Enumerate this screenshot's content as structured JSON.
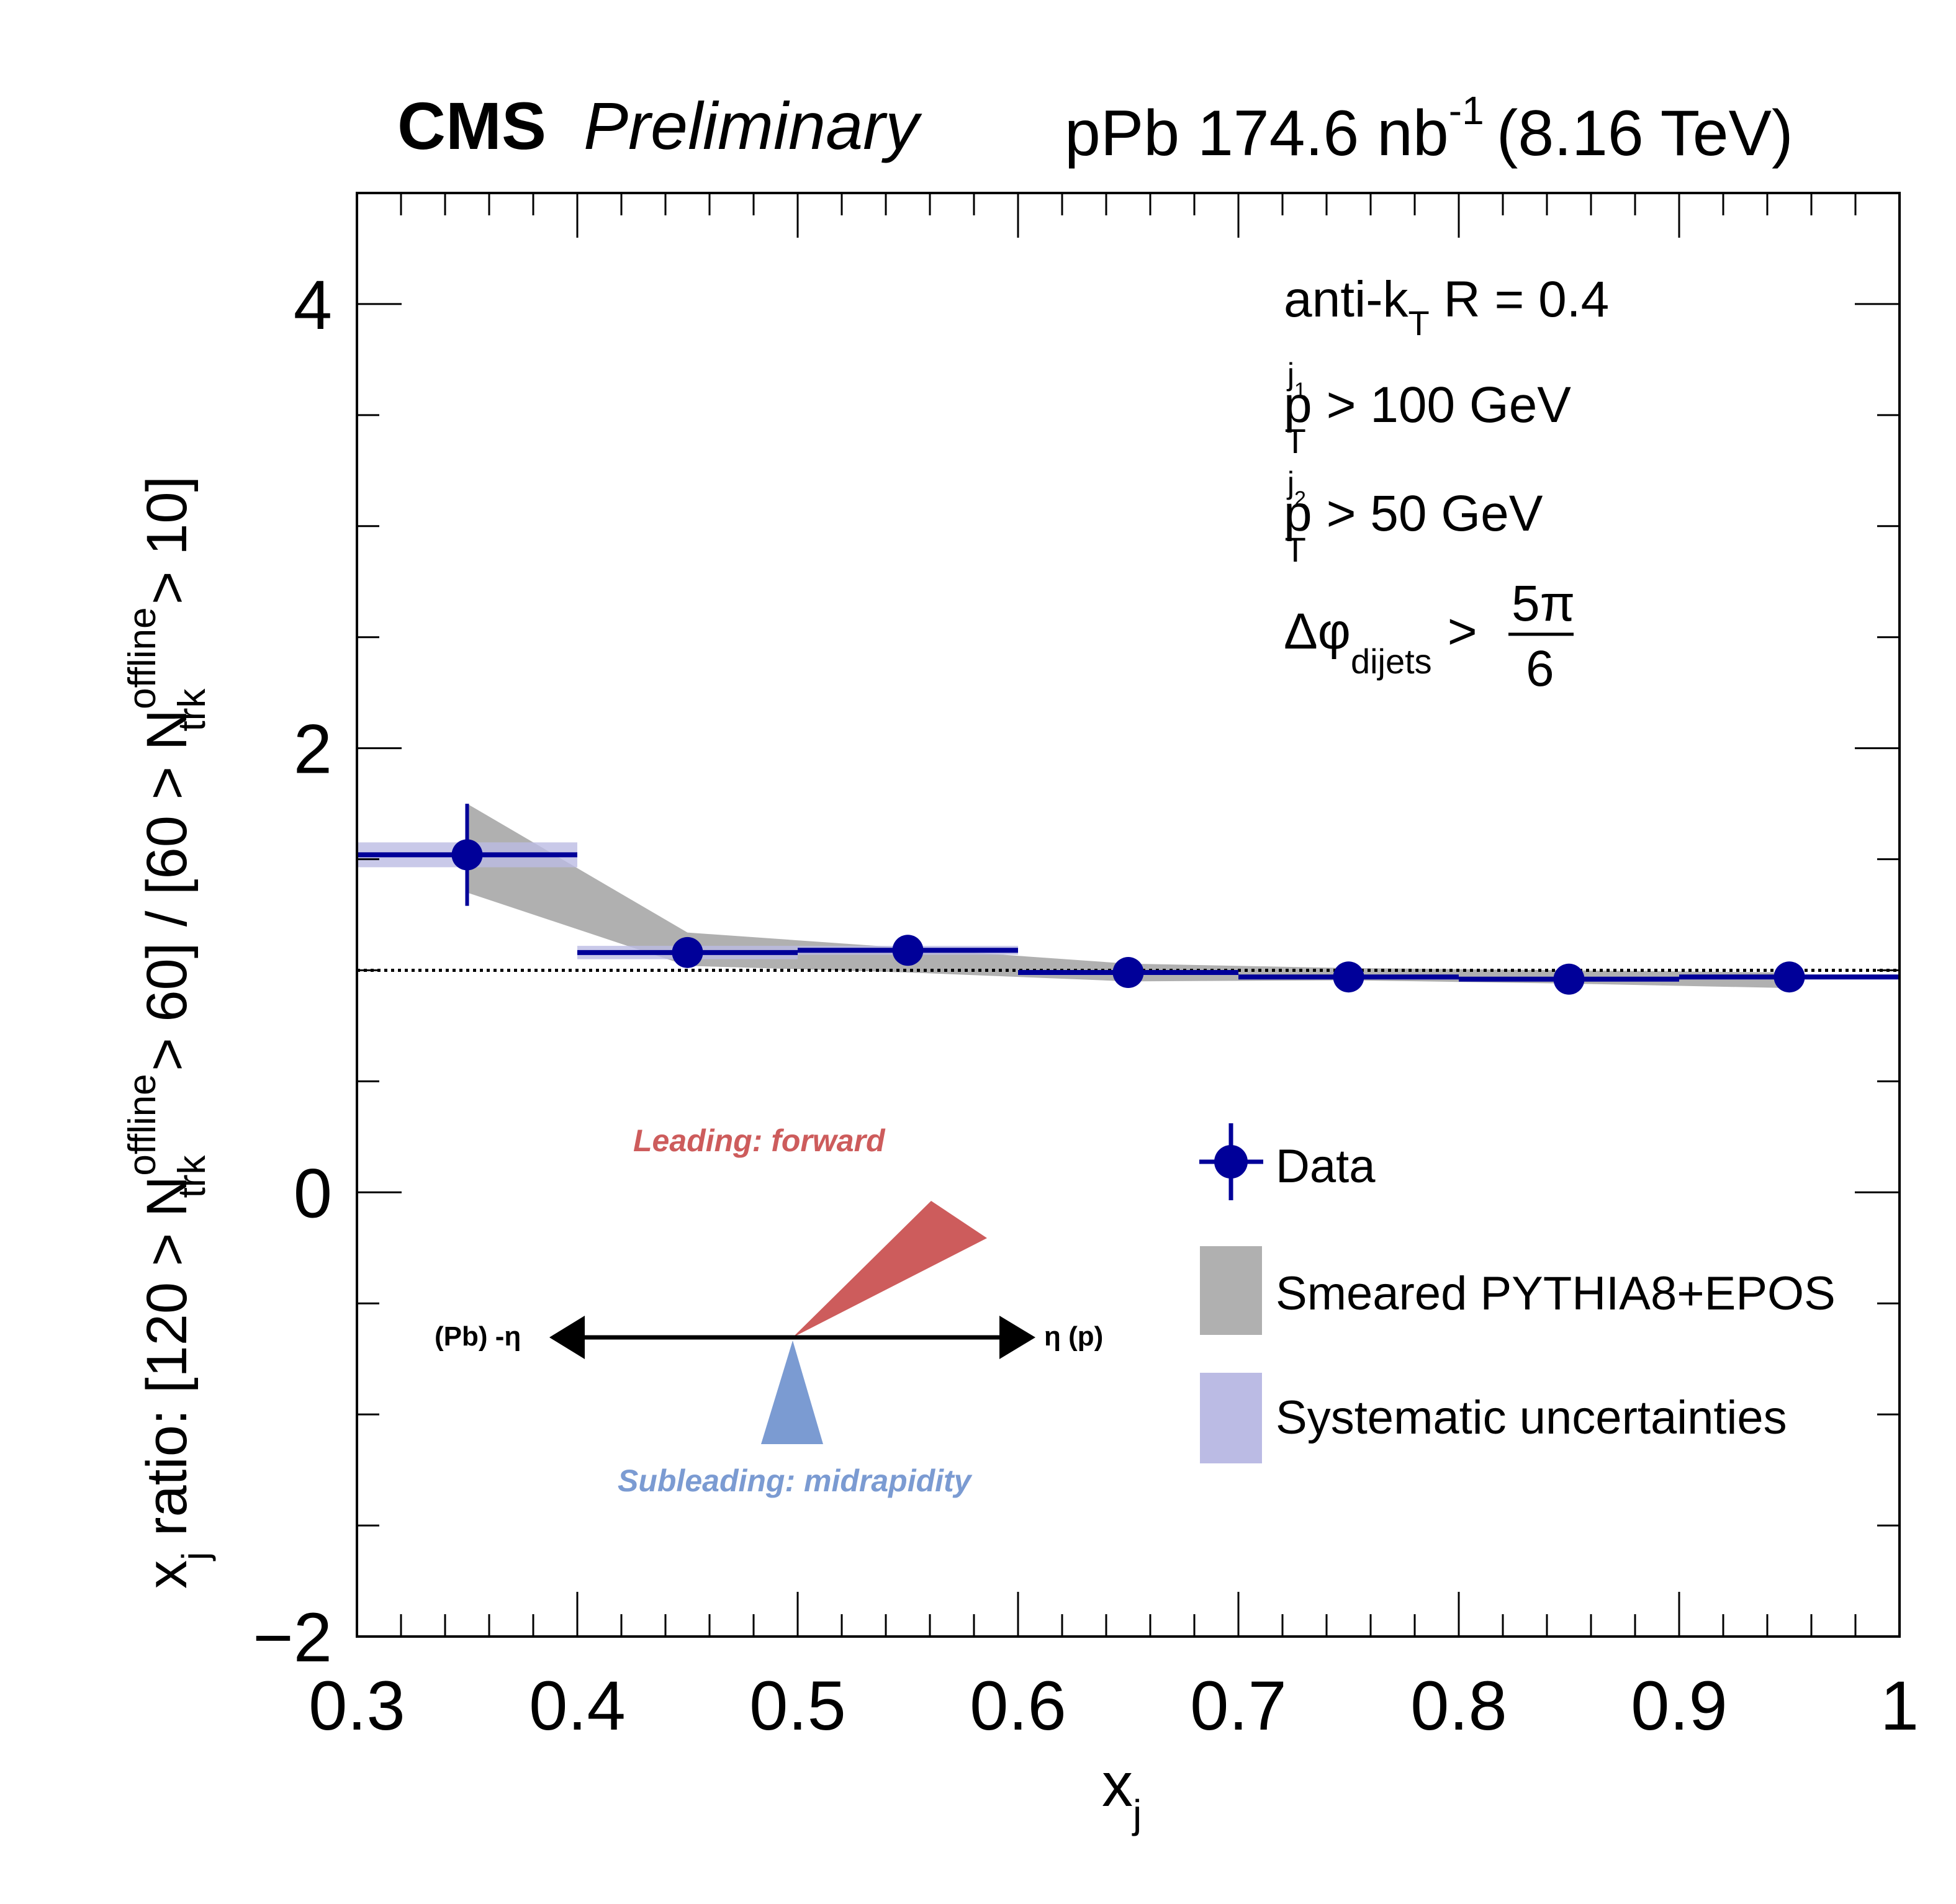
{
  "chart_data": {
    "type": "scatter",
    "title": "CMS Preliminary",
    "header": {
      "experiment": "CMS",
      "status": "Preliminary",
      "lumi_prefix": "pPb 174.6 nb",
      "lumi_exp": "-1",
      "energy": "(8.16 TeV)"
    },
    "xlabel": "x",
    "xlabel_sub": "j",
    "ylabel": {
      "p1": "x",
      "p1_sub": "j",
      "p2": " ratio: [120 > N",
      "p2_sup": "offline",
      "p2_sub": "trk",
      "p3": " > 60] / [60 > N",
      "p3_sup": "offline",
      "p3_sub": "trk",
      "p4": " > 10]"
    },
    "xlim": [
      0.3,
      1.0
    ],
    "ylim": [
      -2,
      4.5
    ],
    "x_ticks": [
      0.3,
      0.4,
      0.5,
      0.6,
      0.7,
      0.8,
      0.9,
      1.0
    ],
    "x_tick_labels": [
      "0.3",
      "0.4",
      "0.5",
      "0.6",
      "0.7",
      "0.8",
      "0.9",
      "1"
    ],
    "y_ticks": [
      -2,
      0,
      2,
      4
    ],
    "y_tick_labels": [
      "−2",
      "0",
      "2",
      "4"
    ],
    "reference_line": 1.0,
    "series": [
      {
        "name": "Data",
        "color": "#000099",
        "x": [
          0.35,
          0.45,
          0.55,
          0.65,
          0.75,
          0.85,
          0.95
        ],
        "x_err": 0.05,
        "y": [
          1.52,
          1.08,
          1.09,
          0.99,
          0.97,
          0.96,
          0.97
        ],
        "y_stat_err": [
          0.23,
          0.02,
          0.02,
          0.02,
          0.02,
          0.02,
          0.02
        ],
        "y_syst_err": [
          0.056,
          0.03,
          0.02,
          0.01,
          0.01,
          0.01,
          0.01
        ]
      },
      {
        "name": "Smeared PYTHIA8+EPOS",
        "color": "#b0b0b0",
        "x": [
          0.35,
          0.45,
          0.55,
          0.65,
          0.75,
          0.85,
          0.95
        ],
        "y_high": [
          1.75,
          1.17,
          1.1,
          1.03,
          1.01,
          1.0,
          0.99
        ],
        "y_low": [
          1.35,
          1.02,
          0.99,
          0.95,
          0.955,
          0.94,
          0.92
        ]
      }
    ],
    "legend": {
      "placement": "bottom-right",
      "entries": [
        "Data",
        "Smeared PYTHIA8+EPOS",
        "Systematic uncertainties"
      ],
      "syst_color": "#bbbbe4"
    },
    "annotations": {
      "algo": "anti-k",
      "algo_sub": "T",
      "algo_rest": " R = 0.4",
      "pt1_p": "p",
      "pt1_sub": "T",
      "pt1_sup": "j",
      "pt1_supsub": "1",
      "pt1_rest": " > 100 GeV",
      "pt2_p": "p",
      "pt2_sub": "T",
      "pt2_sup": "j",
      "pt2_supsub": "2",
      "pt2_rest": " > 50 GeV",
      "dphi": "Δφ",
      "dphi_sub": "dijets",
      "dphi_gt": ">",
      "dphi_num": "5π",
      "dphi_den": "6"
    },
    "diagram": {
      "leading_label": "Leading: forward",
      "leading_color": "#cd5c5c",
      "subleading_label": "Subleading: midrapidity",
      "subleading_color": "#7b9bd2",
      "left_label": "(Pb) -η",
      "right_label": "η (p)"
    }
  }
}
